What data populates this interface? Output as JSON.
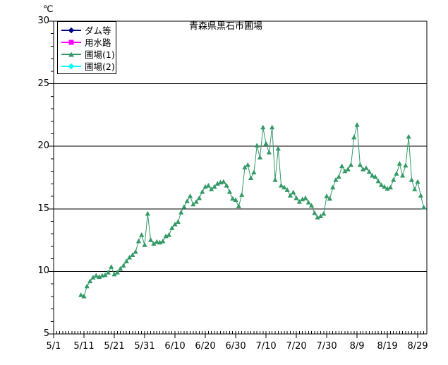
{
  "chart_data": {
    "type": "line",
    "title": "青森県黒石市圃場",
    "unit_label": "℃",
    "ylim": [
      5,
      30
    ],
    "yticks": [
      5,
      10,
      15,
      20,
      25,
      30
    ],
    "grid": "horizontal-only",
    "x_axis": {
      "start": "5/1",
      "end": "9/1",
      "minor_tick_every_days": 1,
      "major_tick_every_days": 10,
      "tick_labels": [
        "5/1",
        "5/11",
        "5/21",
        "5/31",
        "6/10",
        "6/20",
        "6/30",
        "7/10",
        "7/20",
        "7/30",
        "8/9",
        "8/19",
        "8/29"
      ]
    },
    "legend": {
      "position": "top-left",
      "entries": [
        {
          "label": "ダム等",
          "color": "#000080",
          "marker": "diamond"
        },
        {
          "label": "用水路",
          "color": "#FF00FF",
          "marker": "square"
        },
        {
          "label": "圃場(1)",
          "color": "#339966",
          "marker": "triangle"
        },
        {
          "label": "圃場(2)",
          "color": "#00FFFF",
          "marker": "diamond"
        }
      ]
    },
    "series": [
      {
        "name": "ダム等",
        "color": "#000080",
        "marker": "diamond",
        "start_date": null,
        "values": []
      },
      {
        "name": "用水路",
        "color": "#FF00FF",
        "marker": "square",
        "start_date": null,
        "values": []
      },
      {
        "name": "圃場(1)",
        "color": "#339966",
        "marker": "triangle",
        "start_date": "5/10",
        "cadence": "daily",
        "values": [
          8.1,
          8.0,
          8.8,
          9.2,
          9.5,
          9.65,
          9.55,
          9.65,
          9.7,
          9.9,
          10.35,
          9.75,
          9.9,
          10.2,
          10.45,
          10.8,
          11.1,
          11.3,
          11.55,
          12.4,
          12.9,
          12.1,
          14.6,
          12.5,
          12.2,
          12.35,
          12.3,
          12.4,
          12.8,
          12.9,
          13.45,
          13.75,
          13.95,
          14.7,
          15.15,
          15.6,
          16.0,
          15.35,
          15.55,
          15.85,
          16.35,
          16.75,
          16.85,
          16.55,
          16.75,
          17.0,
          17.1,
          17.15,
          16.85,
          16.35,
          15.8,
          15.7,
          15.2,
          16.1,
          18.3,
          18.5,
          17.45,
          17.9,
          20.05,
          19.1,
          21.5,
          20.2,
          19.5,
          21.5,
          17.3,
          19.8,
          16.85,
          16.7,
          16.5,
          16.05,
          16.3,
          15.85,
          15.55,
          15.75,
          15.85,
          15.5,
          15.25,
          14.65,
          14.3,
          14.4,
          14.6,
          16.0,
          15.8,
          16.7,
          17.3,
          17.55,
          18.4,
          18.0,
          18.15,
          18.5,
          20.7,
          21.7,
          18.5,
          18.15,
          18.25,
          17.95,
          17.65,
          17.55,
          17.2,
          16.9,
          16.75,
          16.6,
          16.7,
          17.3,
          17.8,
          18.6,
          17.65,
          18.45,
          20.75,
          17.3,
          16.55,
          17.15,
          16.05,
          15.1
        ]
      },
      {
        "name": "圃場(2)",
        "color": "#00FFFF",
        "marker": "diamond",
        "start_date": null,
        "values": []
      }
    ],
    "axis_color": "#000000",
    "background_color": "#ffffff"
  }
}
